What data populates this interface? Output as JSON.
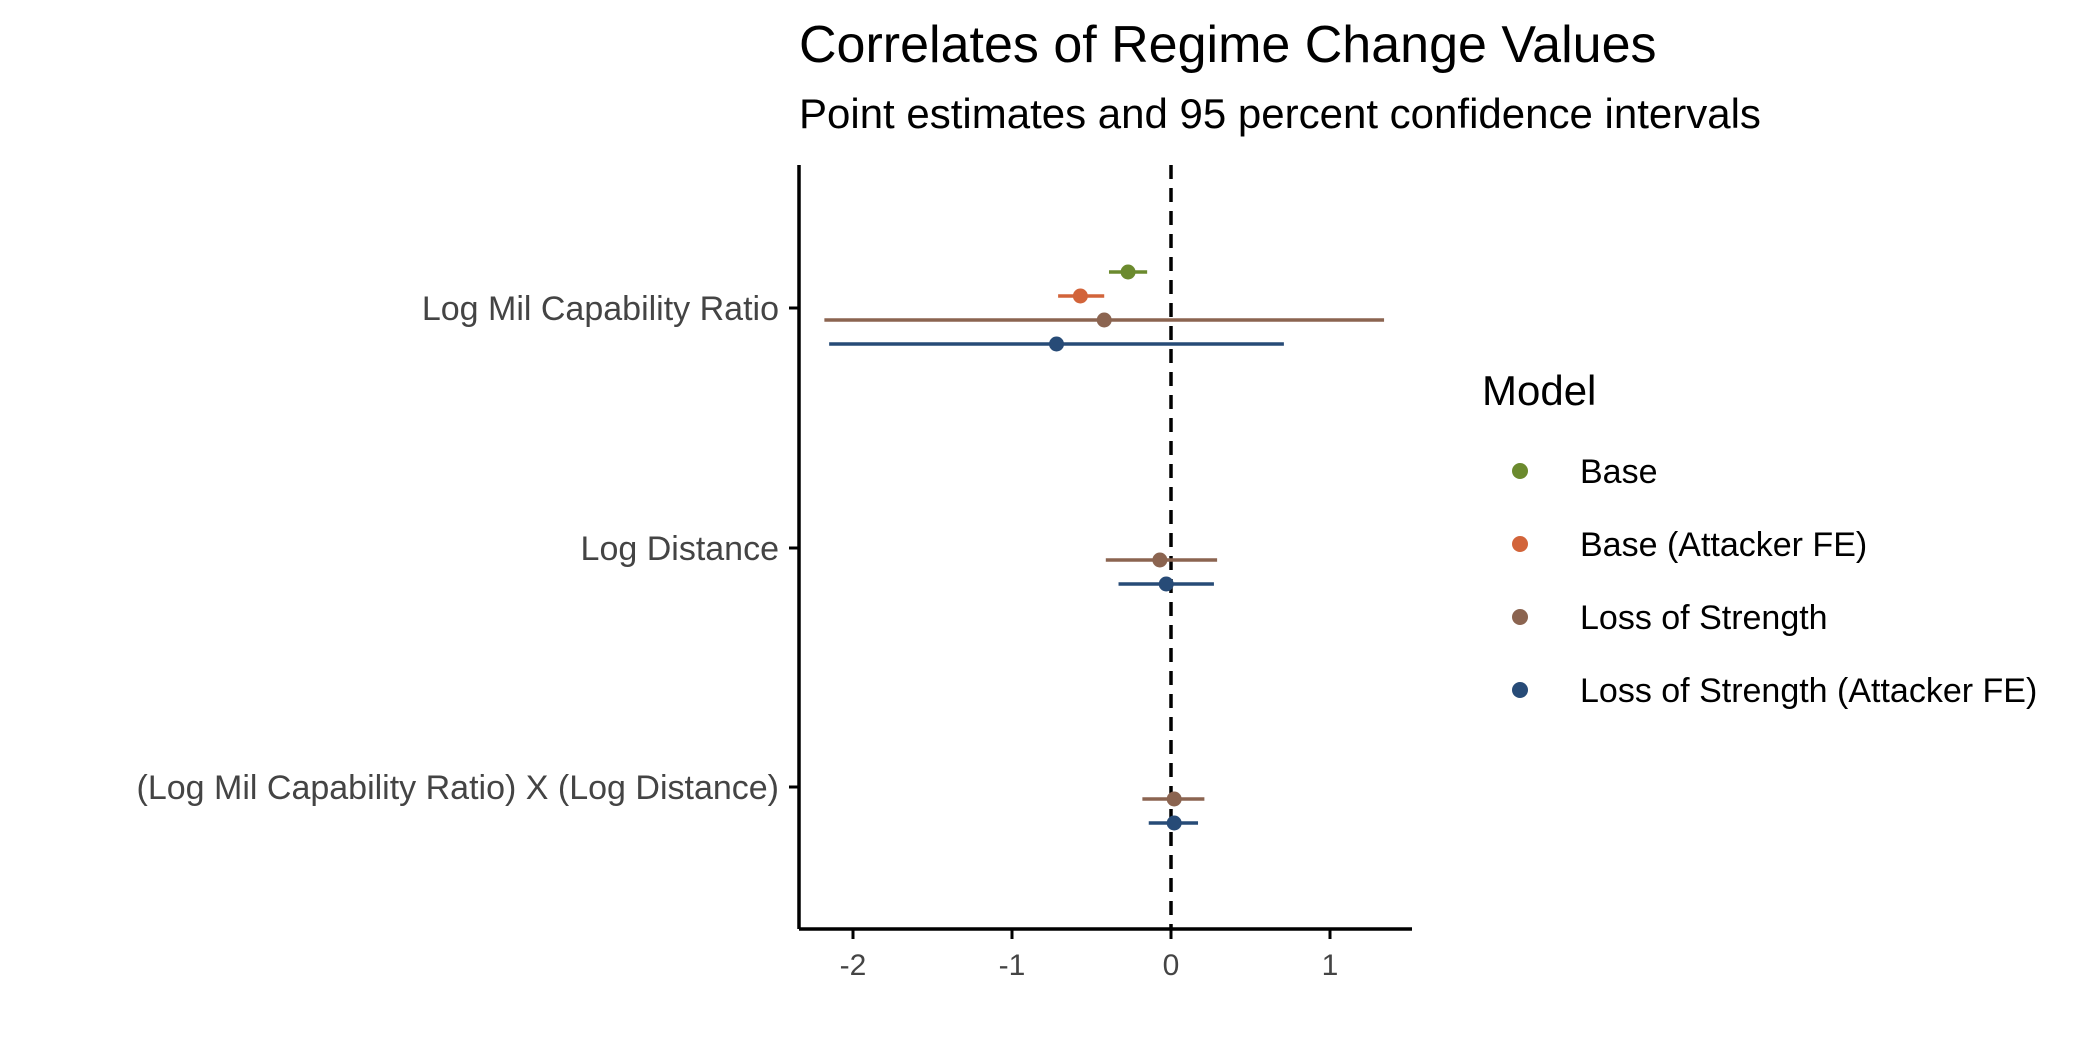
{
  "chart_data": {
    "type": "coefficient-plot",
    "title": "Correlates of Regime Change Values",
    "subtitle": "Point estimates and 95 percent confidence intervals",
    "xlabel": "",
    "ylabel": "",
    "xlim": [
      -2.35,
      1.5
    ],
    "x_ticks": [
      -2,
      -1,
      0,
      1
    ],
    "x_tick_labels": [
      "-2",
      "-1",
      "0",
      "1"
    ],
    "reference_line": 0,
    "grid": false,
    "legend_position": "right",
    "terms": [
      "Log Mil Capability Ratio",
      "Log Distance",
      "(Log Mil Capability Ratio) X (Log Distance)"
    ],
    "legend_title": "Model",
    "series": [
      {
        "name": "Base",
        "color": "#6b8a2e",
        "estimates": [
          {
            "term": 0,
            "estimate": -0.27,
            "low": -0.39,
            "high": -0.15
          }
        ]
      },
      {
        "name": "Base (Attacker FE)",
        "color": "#d2643a",
        "estimates": [
          {
            "term": 0,
            "estimate": -0.57,
            "low": -0.71,
            "high": -0.42
          }
        ]
      },
      {
        "name": "Loss of Strength",
        "color": "#8b6450",
        "estimates": [
          {
            "term": 0,
            "estimate": -0.42,
            "low": -2.18,
            "high": 1.34
          },
          {
            "term": 1,
            "estimate": -0.07,
            "low": -0.41,
            "high": 0.29
          },
          {
            "term": 2,
            "estimate": 0.02,
            "low": -0.18,
            "high": 0.21
          }
        ]
      },
      {
        "name": "Loss of Strength (Attacker FE)",
        "color": "#274b77",
        "estimates": [
          {
            "term": 0,
            "estimate": -0.72,
            "low": -2.15,
            "high": 0.71
          },
          {
            "term": 1,
            "estimate": -0.03,
            "low": -0.33,
            "high": 0.27
          },
          {
            "term": 2,
            "estimate": 0.02,
            "low": -0.14,
            "high": 0.17
          }
        ]
      }
    ]
  }
}
